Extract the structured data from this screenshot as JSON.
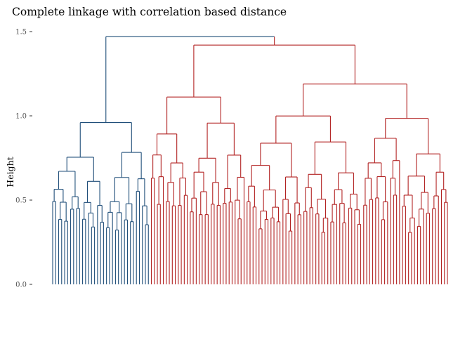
{
  "chart_data": {
    "type": "dendrogram",
    "title": "Complete linkage with correlation based distance",
    "ylabel": "Height",
    "xlabel": "",
    "ylim": [
      0,
      1.5
    ],
    "yticks": [
      0,
      0.5,
      1,
      1.5
    ],
    "ytick_labels": [
      "0.0",
      "0.5",
      "1.0",
      "1.5"
    ],
    "grid": false,
    "colors": {
      "cluster_1": "#1f4e79",
      "cluster_2": "#b22222"
    },
    "cluster_sizes": {
      "cluster_1": 33,
      "cluster_2": 100
    },
    "approx_merge_heights": {
      "root": 1.47,
      "cluster_1_top": 0.96,
      "cluster_2_top": 1.42
    }
  }
}
